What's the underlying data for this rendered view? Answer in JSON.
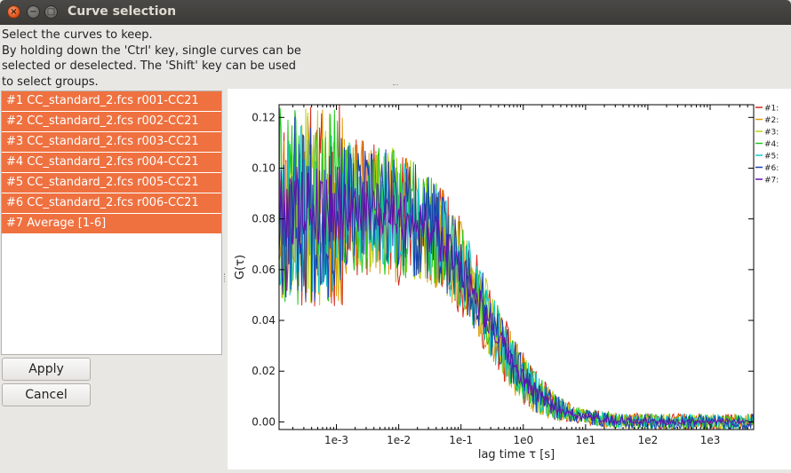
{
  "window": {
    "title": "Curve selection"
  },
  "instructions": [
    "Select the curves to keep.",
    "By holding down the 'Ctrl' key, single curves can be",
    "selected or deselected. The 'Shift' key can be used",
    "to select groups."
  ],
  "curve_list": [
    "#1 CC_standard_2.fcs r001-CC21",
    "#2 CC_standard_2.fcs r002-CC21",
    "#3 CC_standard_2.fcs r003-CC21",
    "#4 CC_standard_2.fcs r004-CC21",
    "#5 CC_standard_2.fcs r005-CC21",
    "#6 CC_standard_2.fcs r006-CC21",
    "#7 Average [1-6]"
  ],
  "buttons": {
    "apply": "Apply",
    "cancel": "Cancel"
  },
  "colors": {
    "selection": "#ef7140"
  },
  "chart_data": {
    "type": "line",
    "xscale": "log",
    "xlabel": "lag time τ [s]",
    "ylabel": "G(τ)",
    "xlim": [
      0.00012,
      5000
    ],
    "ylim": [
      -0.003,
      0.125
    ],
    "xticks": [
      {
        "value": 0.001,
        "label": "1e-3"
      },
      {
        "value": 0.01,
        "label": "1e-2"
      },
      {
        "value": 0.1,
        "label": "1e-1"
      },
      {
        "value": 1,
        "label": "1e0"
      },
      {
        "value": 10,
        "label": "1e1"
      },
      {
        "value": 100,
        "label": "1e2"
      },
      {
        "value": 1000,
        "label": "1e3"
      }
    ],
    "yticks": [
      {
        "value": 0.0,
        "label": "0.00"
      },
      {
        "value": 0.02,
        "label": "0.02"
      },
      {
        "value": 0.04,
        "label": "0.04"
      },
      {
        "value": 0.06,
        "label": "0.06"
      },
      {
        "value": 0.08,
        "label": "0.08"
      },
      {
        "value": 0.1,
        "label": "0.10"
      },
      {
        "value": 0.12,
        "label": "0.12"
      }
    ],
    "model": {
      "g0": 0.085,
      "tau_d": 0.25
    },
    "legend_position": "outside-top-right",
    "series": [
      {
        "name": "#1:",
        "color": "#d42a1f",
        "noise": 0.028,
        "seed": 11
      },
      {
        "name": "#2:",
        "color": "#e09a0a",
        "noise": 0.027,
        "seed": 23
      },
      {
        "name": "#3:",
        "color": "#b8d21a",
        "noise": 0.026,
        "seed": 37
      },
      {
        "name": "#4:",
        "color": "#1ec81e",
        "noise": 0.026,
        "seed": 41
      },
      {
        "name": "#5:",
        "color": "#19c8c8",
        "noise": 0.025,
        "seed": 53
      },
      {
        "name": "#6:",
        "color": "#1b3fb0",
        "noise": 0.025,
        "seed": 67
      },
      {
        "name": "#7:",
        "color": "#6a0dad",
        "noise": 0.011,
        "seed": 79
      }
    ]
  }
}
